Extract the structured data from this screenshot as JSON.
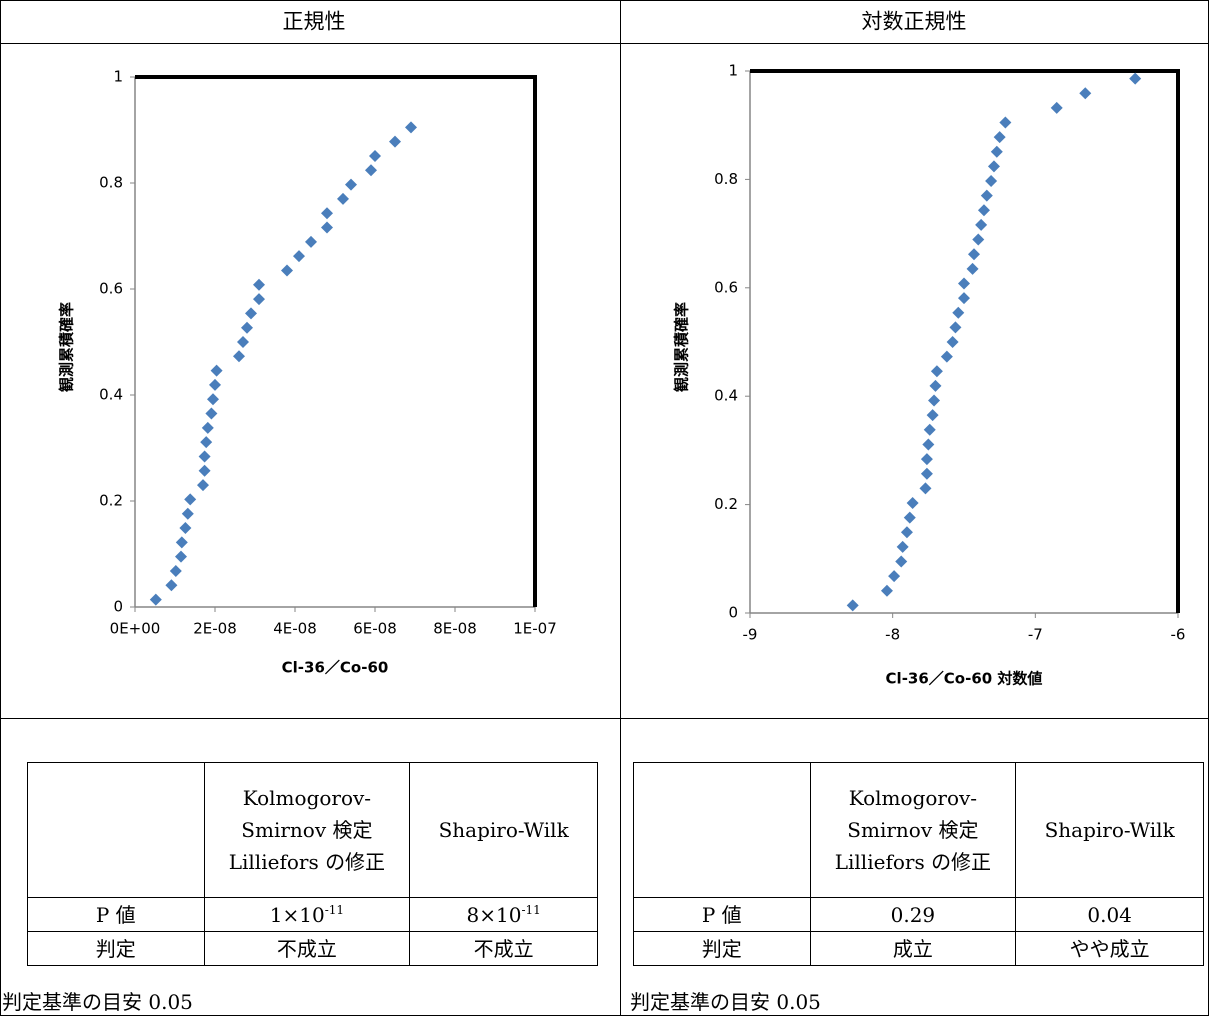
{
  "headers": [
    "正規性",
    "対数正規性"
  ],
  "chart_data": [
    {
      "type": "scatter",
      "x_label": "Cl-36／Co-60",
      "y_label": "観測累積確率",
      "color": "#4a7ebb",
      "marker": "diamond",
      "x": [
        5.2e-09,
        9.1e-09,
        1.02e-08,
        1.15e-08,
        1.17e-08,
        1.26e-08,
        1.32e-08,
        1.38e-08,
        1.7e-08,
        1.74e-08,
        1.74e-08,
        1.78e-08,
        1.82e-08,
        1.91e-08,
        1.95e-08,
        2e-08,
        2.04e-08,
        2.6e-08,
        2.7e-08,
        2.8e-08,
        2.9e-08,
        3.1e-08,
        3.1e-08,
        3.8e-08,
        4.1e-08,
        4.4e-08,
        4.8e-08,
        4.8e-08,
        5.2e-08,
        5.4e-08,
        5.9e-08,
        6e-08,
        6.5e-08,
        6.9e-08
      ],
      "y": [
        0.014,
        0.041,
        0.068,
        0.095,
        0.122,
        0.149,
        0.176,
        0.203,
        0.23,
        0.257,
        0.284,
        0.311,
        0.338,
        0.365,
        0.392,
        0.419,
        0.446,
        0.473,
        0.5,
        0.527,
        0.554,
        0.581,
        0.608,
        0.635,
        0.662,
        0.689,
        0.716,
        0.743,
        0.77,
        0.797,
        0.824,
        0.851,
        0.878,
        0.905
      ],
      "xlim": [
        0,
        1e-07
      ],
      "xticks": [
        {
          "value": 0,
          "label": "0E+00"
        },
        {
          "value": 2e-08,
          "label": "2E-08"
        },
        {
          "value": 4e-08,
          "label": "4E-08"
        },
        {
          "value": 6e-08,
          "label": "6E-08"
        },
        {
          "value": 8e-08,
          "label": "8E-08"
        },
        {
          "value": 1e-07,
          "label": "1E-07"
        }
      ],
      "ylim": [
        0,
        1
      ],
      "yticks": [
        0,
        0.2,
        0.4,
        0.6,
        0.8,
        1
      ]
    },
    {
      "type": "scatter",
      "x_label": "Cl-36／Co-60 対数値",
      "y_label": "観測累積確率",
      "color": "#4a7ebb",
      "marker": "diamond",
      "x": [
        -8.28,
        -8.04,
        -7.99,
        -7.94,
        -7.93,
        -7.9,
        -7.88,
        -7.86,
        -7.77,
        -7.76,
        -7.76,
        -7.75,
        -7.74,
        -7.72,
        -7.71,
        -7.7,
        -7.69,
        -7.62,
        -7.58,
        -7.56,
        -7.54,
        -7.5,
        -7.5,
        -7.44,
        -7.43,
        -7.4,
        -7.38,
        -7.36,
        -7.34,
        -7.31,
        -7.29,
        -7.27,
        -7.25,
        -7.21,
        -6.85,
        -6.65,
        -6.3
      ],
      "y": [
        0.014,
        0.041,
        0.068,
        0.095,
        0.122,
        0.149,
        0.176,
        0.203,
        0.23,
        0.257,
        0.284,
        0.311,
        0.338,
        0.365,
        0.392,
        0.419,
        0.446,
        0.473,
        0.5,
        0.527,
        0.554,
        0.581,
        0.608,
        0.635,
        0.662,
        0.689,
        0.716,
        0.743,
        0.77,
        0.797,
        0.824,
        0.851,
        0.878,
        0.905,
        0.932,
        0.959,
        0.986
      ],
      "xlim": [
        -9,
        -6
      ],
      "xticks": [
        -9,
        -8,
        -7,
        -6
      ],
      "ylim": [
        0,
        1
      ],
      "yticks": [
        0,
        0.2,
        0.4,
        0.6,
        0.8,
        1
      ]
    }
  ],
  "tables": [
    {
      "columns": [
        "Kolmogorov-Smirnov 検定 Lilliefors の修正",
        "Shapiro-Wilk"
      ],
      "rows": [
        [
          "P 値",
          {
            "base": "1×10",
            "exp": "-11"
          },
          {
            "base": "8×10",
            "exp": "-11"
          }
        ],
        [
          "判定",
          "不成立",
          "不成立"
        ]
      ],
      "note": "判定基準の目安 0.05"
    },
    {
      "columns": [
        "Kolmogorov-Smirnov 検定 Lilliefors の修正",
        "Shapiro-Wilk"
      ],
      "rows": [
        [
          "P 値",
          "0.29",
          "0.04"
        ],
        [
          "判定",
          "成立",
          "やや成立"
        ]
      ],
      "note": "判定基準の目安 0.05"
    }
  ]
}
